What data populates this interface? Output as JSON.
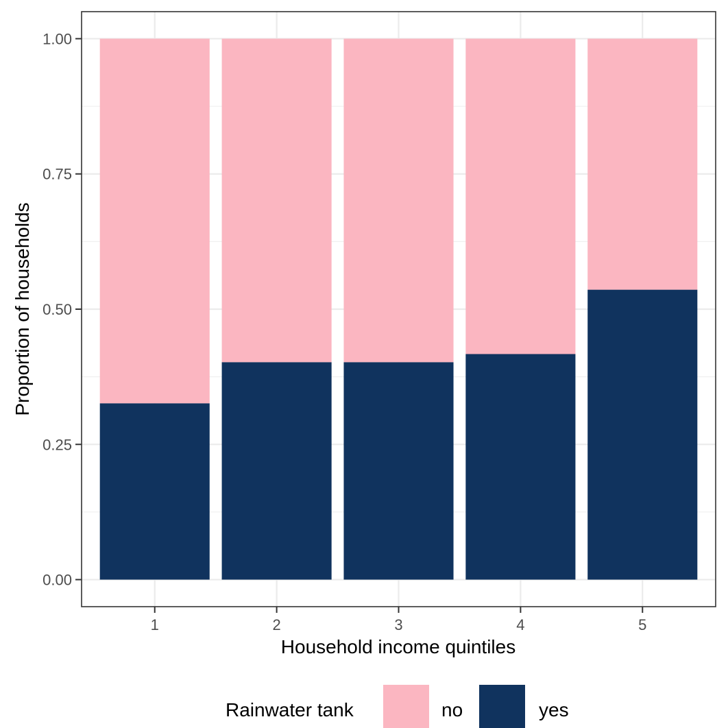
{
  "chart_data": {
    "type": "bar",
    "stacked": true,
    "xlabel": "Household income quintiles",
    "ylabel": "Proportion of households",
    "categories": [
      "1",
      "2",
      "3",
      "4",
      "5"
    ],
    "series": [
      {
        "name": "yes",
        "color": "#10335E",
        "values": [
          0.326,
          0.402,
          0.402,
          0.417,
          0.536
        ]
      },
      {
        "name": "no",
        "color": "#FBB6C1",
        "values": [
          0.674,
          0.598,
          0.598,
          0.583,
          0.464
        ]
      }
    ],
    "ylim": [
      -0.05,
      1.05
    ],
    "yticks": [
      0,
      0.25,
      0.5,
      0.75,
      1.0
    ],
    "ytick_labels": [
      "0.00",
      "0.25",
      "0.50",
      "0.75",
      "1.00"
    ],
    "grid": true,
    "legend": {
      "title": "Rainwater tank",
      "position": "bottom",
      "entries": [
        {
          "label": "no",
          "color": "#FBB6C1"
        },
        {
          "label": "yes",
          "color": "#10335E"
        }
      ]
    }
  }
}
